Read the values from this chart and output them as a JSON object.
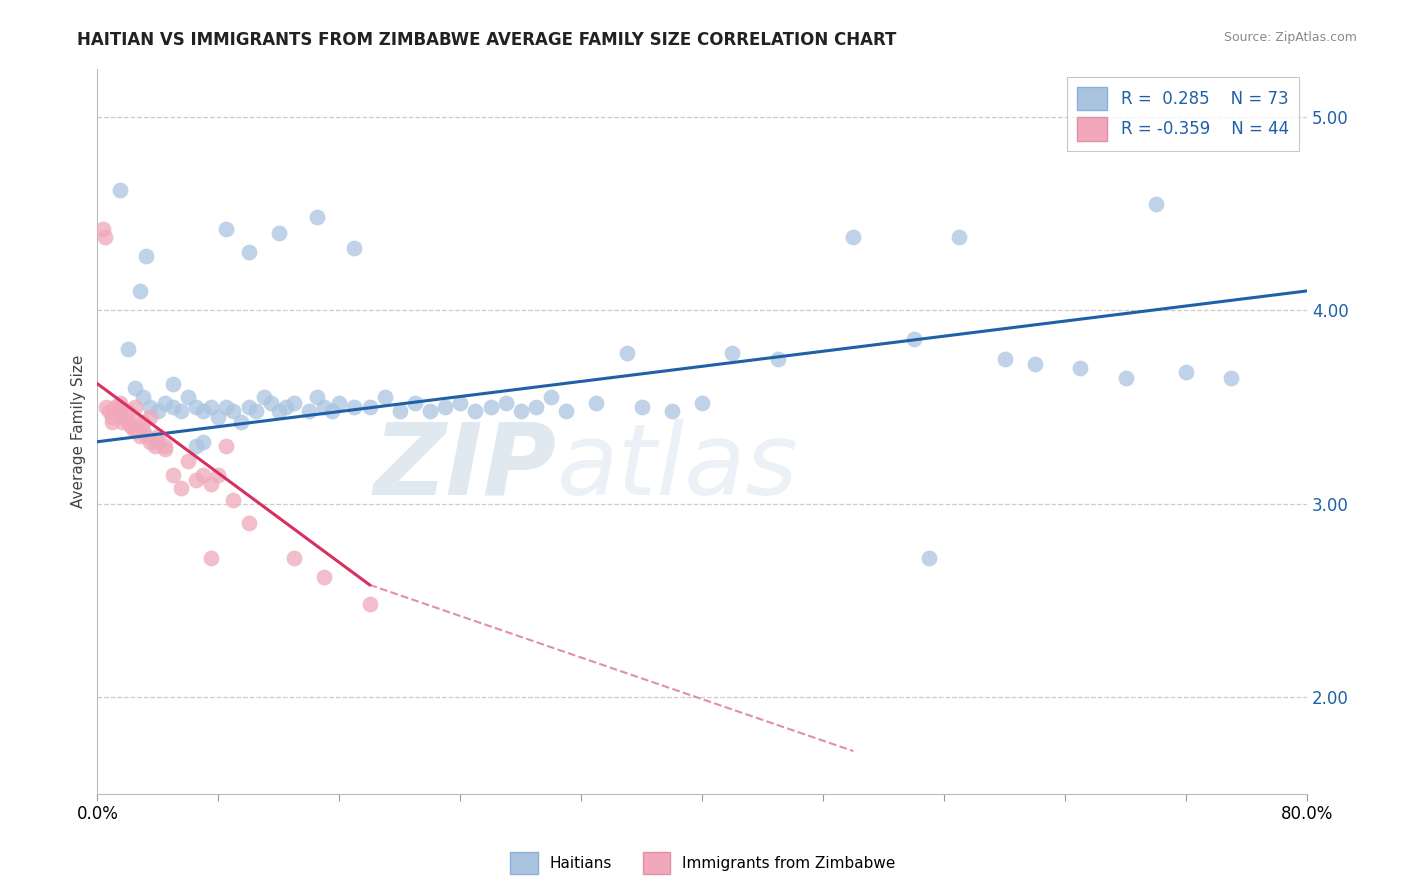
{
  "title": "HAITIAN VS IMMIGRANTS FROM ZIMBABWE AVERAGE FAMILY SIZE CORRELATION CHART",
  "source": "Source: ZipAtlas.com",
  "ylabel": "Average Family Size",
  "xmin": 0.0,
  "xmax": 80.0,
  "ymin": 1.5,
  "ymax": 5.25,
  "yticks": [
    2.0,
    3.0,
    4.0,
    5.0
  ],
  "blue_R": 0.285,
  "blue_N": 73,
  "pink_R": -0.359,
  "pink_N": 44,
  "blue_color": "#aac4e0",
  "pink_color": "#f0a8ba",
  "blue_line_color": "#2060a8",
  "pink_line_color": "#d83060",
  "pink_dash_color": "#e090a8",
  "watermark_zip": "ZIP",
  "watermark_atlas": "atlas",
  "legend_label_blue": "Haitians",
  "legend_label_pink": "Immigrants from Zimbabwe",
  "blue_line_x0": 0.0,
  "blue_line_y0": 3.32,
  "blue_line_x1": 80.0,
  "blue_line_y1": 4.1,
  "pink_line_x0": 0.0,
  "pink_line_y0": 3.62,
  "pink_line_x1": 18.0,
  "pink_line_y1": 2.58,
  "pink_dash_x0": 18.0,
  "pink_dash_y0": 2.58,
  "pink_dash_x1": 50.0,
  "pink_dash_y1": 1.72,
  "xtick_positions": [
    0,
    8,
    16,
    24,
    32,
    40,
    48,
    56,
    64,
    72,
    80
  ],
  "blue_x": [
    1.5,
    2.0,
    2.5,
    3.0,
    3.5,
    4.0,
    4.5,
    5.0,
    5.5,
    6.0,
    6.5,
    7.0,
    7.5,
    8.0,
    8.5,
    9.0,
    9.5,
    10.0,
    10.5,
    11.0,
    11.5,
    12.0,
    12.5,
    13.0,
    14.0,
    14.5,
    15.0,
    15.5,
    16.0,
    17.0,
    18.0,
    19.0,
    20.0,
    21.0,
    22.0,
    23.0,
    24.0,
    25.0,
    26.0,
    27.0,
    28.0,
    29.0,
    30.0,
    31.0,
    33.0,
    35.0,
    36.0,
    38.0,
    40.0,
    42.0,
    45.0,
    50.0,
    54.0,
    57.0,
    60.0,
    62.0,
    65.0,
    68.0,
    70.0,
    72.0,
    75.0,
    14.5,
    17.0,
    8.5,
    12.0,
    10.0,
    7.0,
    6.5,
    5.0,
    4.0,
    3.2,
    2.8,
    55.0
  ],
  "blue_y": [
    4.62,
    3.8,
    3.6,
    3.55,
    3.5,
    3.48,
    3.52,
    3.5,
    3.48,
    3.55,
    3.5,
    3.48,
    3.5,
    3.45,
    3.5,
    3.48,
    3.42,
    3.5,
    3.48,
    3.55,
    3.52,
    3.48,
    3.5,
    3.52,
    3.48,
    3.55,
    3.5,
    3.48,
    3.52,
    3.5,
    3.5,
    3.55,
    3.48,
    3.52,
    3.48,
    3.5,
    3.52,
    3.48,
    3.5,
    3.52,
    3.48,
    3.5,
    3.55,
    3.48,
    3.52,
    3.78,
    3.5,
    3.48,
    3.52,
    3.78,
    3.75,
    4.38,
    3.85,
    4.38,
    3.75,
    3.72,
    3.7,
    3.65,
    4.55,
    3.68,
    3.65,
    4.48,
    4.32,
    4.42,
    4.4,
    4.3,
    3.32,
    3.3,
    3.62,
    3.32,
    4.28,
    4.1,
    2.72
  ],
  "pink_x": [
    0.4,
    0.5,
    0.6,
    0.8,
    1.0,
    1.0,
    1.2,
    1.4,
    1.5,
    1.6,
    1.8,
    2.0,
    2.0,
    2.2,
    2.4,
    2.5,
    2.6,
    2.8,
    3.0,
    3.0,
    3.2,
    3.5,
    3.8,
    4.0,
    4.5,
    5.0,
    5.5,
    6.0,
    6.5,
    7.0,
    7.5,
    8.0,
    9.0,
    10.0,
    13.0,
    15.0,
    18.0,
    1.5,
    2.5,
    3.5,
    4.5,
    7.5,
    8.5,
    2.2
  ],
  "pink_y": [
    4.42,
    4.38,
    3.5,
    3.48,
    3.45,
    3.42,
    3.5,
    3.48,
    3.52,
    3.42,
    3.45,
    3.42,
    3.48,
    3.4,
    3.38,
    3.42,
    3.38,
    3.35,
    3.38,
    3.42,
    3.35,
    3.32,
    3.3,
    3.35,
    3.28,
    3.15,
    3.08,
    3.22,
    3.12,
    3.15,
    2.72,
    3.15,
    3.02,
    2.9,
    2.72,
    2.62,
    2.48,
    3.5,
    3.5,
    3.45,
    3.3,
    3.1,
    3.3,
    3.4
  ]
}
